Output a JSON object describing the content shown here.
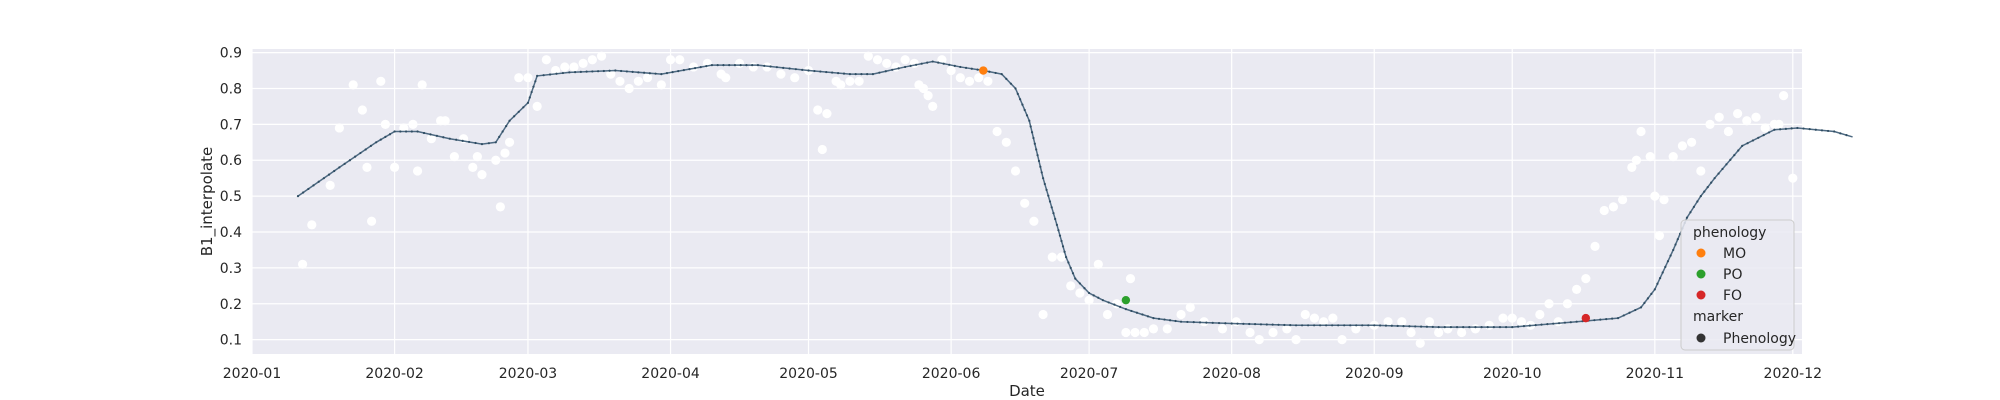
{
  "chart_data": {
    "type": "scatter",
    "xlabel": "Date",
    "ylabel": "B1_interpolate",
    "xlim": [
      "2020-01-01",
      "2020-12-03"
    ],
    "ylim": [
      0.06,
      0.91
    ],
    "grid": true,
    "legend_placement": "bottom-right",
    "x_ticks": [
      "2020-01",
      "2020-02",
      "2020-03",
      "2020-04",
      "2020-05",
      "2020-06",
      "2020-07",
      "2020-08",
      "2020-09",
      "2020-10",
      "2020-11",
      "2020-12"
    ],
    "y_ticks": [
      0.1,
      0.2,
      0.3,
      0.4,
      0.5,
      0.6,
      0.7,
      0.8,
      0.9
    ],
    "series": [
      {
        "kind": "scatter",
        "color": "#ffffff",
        "points": [
          [
            "2020-01-12",
            0.31
          ],
          [
            "2020-01-14",
            0.42
          ],
          [
            "2020-01-18",
            0.53
          ],
          [
            "2020-01-20",
            0.69
          ],
          [
            "2020-01-23",
            0.81
          ],
          [
            "2020-01-25",
            0.74
          ],
          [
            "2020-01-26",
            0.58
          ],
          [
            "2020-01-27",
            0.43
          ],
          [
            "2020-01-29",
            0.82
          ],
          [
            "2020-01-30",
            0.7
          ],
          [
            "2020-02-01",
            0.58
          ],
          [
            "2020-02-03",
            0.69
          ],
          [
            "2020-02-05",
            0.7
          ],
          [
            "2020-02-06",
            0.57
          ],
          [
            "2020-02-07",
            0.81
          ],
          [
            "2020-02-09",
            0.66
          ],
          [
            "2020-02-11",
            0.71
          ],
          [
            "2020-02-12",
            0.71
          ],
          [
            "2020-02-14",
            0.61
          ],
          [
            "2020-02-16",
            0.66
          ],
          [
            "2020-02-18",
            0.58
          ],
          [
            "2020-02-19",
            0.61
          ],
          [
            "2020-02-20",
            0.56
          ],
          [
            "2020-02-23",
            0.6
          ],
          [
            "2020-02-24",
            0.47
          ],
          [
            "2020-02-25",
            0.62
          ],
          [
            "2020-02-26",
            0.65
          ],
          [
            "2020-02-28",
            0.83
          ],
          [
            "2020-03-01",
            0.83
          ],
          [
            "2020-03-03",
            0.75
          ],
          [
            "2020-03-05",
            0.88
          ],
          [
            "2020-03-07",
            0.85
          ],
          [
            "2020-03-09",
            0.86
          ],
          [
            "2020-03-11",
            0.86
          ],
          [
            "2020-03-13",
            0.87
          ],
          [
            "2020-03-15",
            0.88
          ],
          [
            "2020-03-17",
            0.89
          ],
          [
            "2020-03-19",
            0.84
          ],
          [
            "2020-03-21",
            0.82
          ],
          [
            "2020-03-23",
            0.8
          ],
          [
            "2020-03-25",
            0.82
          ],
          [
            "2020-03-27",
            0.83
          ],
          [
            "2020-03-30",
            0.81
          ],
          [
            "2020-04-01",
            0.88
          ],
          [
            "2020-04-03",
            0.88
          ],
          [
            "2020-04-06",
            0.86
          ],
          [
            "2020-04-09",
            0.87
          ],
          [
            "2020-04-12",
            0.84
          ],
          [
            "2020-04-13",
            0.83
          ],
          [
            "2020-04-16",
            0.87
          ],
          [
            "2020-04-19",
            0.86
          ],
          [
            "2020-04-22",
            0.86
          ],
          [
            "2020-04-25",
            0.84
          ],
          [
            "2020-04-28",
            0.83
          ],
          [
            "2020-05-01",
            0.85
          ],
          [
            "2020-05-03",
            0.74
          ],
          [
            "2020-05-04",
            0.63
          ],
          [
            "2020-05-05",
            0.73
          ],
          [
            "2020-05-07",
            0.82
          ],
          [
            "2020-05-08",
            0.81
          ],
          [
            "2020-05-10",
            0.82
          ],
          [
            "2020-05-12",
            0.82
          ],
          [
            "2020-05-14",
            0.89
          ],
          [
            "2020-05-16",
            0.88
          ],
          [
            "2020-05-18",
            0.87
          ],
          [
            "2020-05-20",
            0.86
          ],
          [
            "2020-05-22",
            0.88
          ],
          [
            "2020-05-24",
            0.87
          ],
          [
            "2020-05-25",
            0.81
          ],
          [
            "2020-05-26",
            0.8
          ],
          [
            "2020-05-27",
            0.78
          ],
          [
            "2020-05-28",
            0.75
          ],
          [
            "2020-05-30",
            0.88
          ],
          [
            "2020-06-01",
            0.85
          ],
          [
            "2020-06-03",
            0.83
          ],
          [
            "2020-06-05",
            0.82
          ],
          [
            "2020-06-07",
            0.83
          ],
          [
            "2020-06-09",
            0.82
          ],
          [
            "2020-06-11",
            0.68
          ],
          [
            "2020-06-13",
            0.65
          ],
          [
            "2020-06-15",
            0.57
          ],
          [
            "2020-06-17",
            0.48
          ],
          [
            "2020-06-19",
            0.43
          ],
          [
            "2020-06-21",
            0.17
          ],
          [
            "2020-06-23",
            0.33
          ],
          [
            "2020-06-25",
            0.33
          ],
          [
            "2020-06-27",
            0.25
          ],
          [
            "2020-06-29",
            0.23
          ],
          [
            "2020-07-01",
            0.21
          ],
          [
            "2020-07-03",
            0.31
          ],
          [
            "2020-07-05",
            0.17
          ],
          [
            "2020-07-07",
            0.2
          ],
          [
            "2020-07-09",
            0.12
          ],
          [
            "2020-07-10",
            0.27
          ],
          [
            "2020-07-11",
            0.12
          ],
          [
            "2020-07-13",
            0.12
          ],
          [
            "2020-07-15",
            0.13
          ],
          [
            "2020-07-18",
            0.13
          ],
          [
            "2020-07-21",
            0.17
          ],
          [
            "2020-07-23",
            0.19
          ],
          [
            "2020-07-26",
            0.15
          ],
          [
            "2020-07-30",
            0.13
          ],
          [
            "2020-08-02",
            0.15
          ],
          [
            "2020-08-05",
            0.12
          ],
          [
            "2020-08-07",
            0.1
          ],
          [
            "2020-08-10",
            0.12
          ],
          [
            "2020-08-13",
            0.13
          ],
          [
            "2020-08-15",
            0.1
          ],
          [
            "2020-08-17",
            0.17
          ],
          [
            "2020-08-19",
            0.16
          ],
          [
            "2020-08-21",
            0.15
          ],
          [
            "2020-08-23",
            0.16
          ],
          [
            "2020-08-25",
            0.1
          ],
          [
            "2020-08-28",
            0.13
          ],
          [
            "2020-09-01",
            0.14
          ],
          [
            "2020-09-04",
            0.15
          ],
          [
            "2020-09-07",
            0.15
          ],
          [
            "2020-09-09",
            0.12
          ],
          [
            "2020-09-11",
            0.09
          ],
          [
            "2020-09-13",
            0.15
          ],
          [
            "2020-09-15",
            0.12
          ],
          [
            "2020-09-17",
            0.13
          ],
          [
            "2020-09-20",
            0.12
          ],
          [
            "2020-09-23",
            0.13
          ],
          [
            "2020-09-26",
            0.14
          ],
          [
            "2020-09-29",
            0.16
          ],
          [
            "2020-10-01",
            0.16
          ],
          [
            "2020-10-03",
            0.15
          ],
          [
            "2020-10-05",
            0.14
          ],
          [
            "2020-10-07",
            0.17
          ],
          [
            "2020-10-09",
            0.2
          ],
          [
            "2020-10-11",
            0.15
          ],
          [
            "2020-10-13",
            0.2
          ],
          [
            "2020-10-15",
            0.24
          ],
          [
            "2020-10-17",
            0.27
          ],
          [
            "2020-10-19",
            0.36
          ],
          [
            "2020-10-21",
            0.46
          ],
          [
            "2020-10-23",
            0.47
          ],
          [
            "2020-10-25",
            0.49
          ],
          [
            "2020-10-27",
            0.58
          ],
          [
            "2020-10-28",
            0.6
          ],
          [
            "2020-10-29",
            0.68
          ],
          [
            "2020-10-31",
            0.61
          ],
          [
            "2020-11-01",
            0.5
          ],
          [
            "2020-11-02",
            0.39
          ],
          [
            "2020-11-03",
            0.49
          ],
          [
            "2020-11-05",
            0.61
          ],
          [
            "2020-11-07",
            0.64
          ],
          [
            "2020-11-09",
            0.65
          ],
          [
            "2020-11-11",
            0.57
          ],
          [
            "2020-11-13",
            0.7
          ],
          [
            "2020-11-15",
            0.72
          ],
          [
            "2020-11-17",
            0.68
          ],
          [
            "2020-11-19",
            0.73
          ],
          [
            "2020-11-21",
            0.71
          ],
          [
            "2020-11-23",
            0.72
          ],
          [
            "2020-11-25",
            0.69
          ],
          [
            "2020-11-27",
            0.7
          ],
          [
            "2020-11-28",
            0.7
          ],
          [
            "2020-11-29",
            0.78
          ],
          [
            "2020-12-01",
            0.55
          ]
        ]
      },
      {
        "kind": "line",
        "color": "#4e6a82",
        "points": [
          [
            "2020-01-11",
            0.5
          ],
          [
            "2020-01-20",
            0.58
          ],
          [
            "2020-01-28",
            0.65
          ],
          [
            "2020-02-01",
            0.68
          ],
          [
            "2020-02-06",
            0.68
          ],
          [
            "2020-02-13",
            0.66
          ],
          [
            "2020-02-20",
            0.645
          ],
          [
            "2020-02-23",
            0.65
          ],
          [
            "2020-02-26",
            0.71
          ],
          [
            "2020-03-01",
            0.76
          ],
          [
            "2020-03-03",
            0.835
          ],
          [
            "2020-03-10",
            0.845
          ],
          [
            "2020-03-20",
            0.85
          ],
          [
            "2020-03-30",
            0.84
          ],
          [
            "2020-04-10",
            0.865
          ],
          [
            "2020-04-20",
            0.865
          ],
          [
            "2020-05-01",
            0.85
          ],
          [
            "2020-05-10",
            0.84
          ],
          [
            "2020-05-15",
            0.84
          ],
          [
            "2020-05-22",
            0.86
          ],
          [
            "2020-05-28",
            0.875
          ],
          [
            "2020-06-03",
            0.86
          ],
          [
            "2020-06-08",
            0.85
          ],
          [
            "2020-06-12",
            0.84
          ],
          [
            "2020-06-15",
            0.8
          ],
          [
            "2020-06-18",
            0.71
          ],
          [
            "2020-06-21",
            0.55
          ],
          [
            "2020-06-24",
            0.42
          ],
          [
            "2020-06-26",
            0.33
          ],
          [
            "2020-06-28",
            0.27
          ],
          [
            "2020-07-01",
            0.23
          ],
          [
            "2020-07-04",
            0.21
          ],
          [
            "2020-07-09",
            0.185
          ],
          [
            "2020-07-15",
            0.16
          ],
          [
            "2020-07-21",
            0.15
          ],
          [
            "2020-08-01",
            0.145
          ],
          [
            "2020-08-15",
            0.14
          ],
          [
            "2020-09-01",
            0.14
          ],
          [
            "2020-09-15",
            0.135
          ],
          [
            "2020-10-01",
            0.135
          ],
          [
            "2020-10-15",
            0.15
          ],
          [
            "2020-10-24",
            0.16
          ],
          [
            "2020-10-29",
            0.19
          ],
          [
            "2020-11-01",
            0.24
          ],
          [
            "2020-11-05",
            0.35
          ],
          [
            "2020-11-08",
            0.44
          ],
          [
            "2020-11-11",
            0.5
          ],
          [
            "2020-11-14",
            0.55
          ],
          [
            "2020-11-20",
            0.64
          ],
          [
            "2020-11-27",
            0.685
          ],
          [
            "2020-12-02",
            0.69
          ],
          [
            "2020-12-10",
            0.68
          ],
          [
            "2020-12-14",
            0.665
          ]
        ]
      },
      {
        "kind": "phenology",
        "points": [
          {
            "name": "MO",
            "x": "2020-06-08",
            "y": 0.85,
            "color": "#ff7f0e"
          },
          {
            "name": "PO",
            "x": "2020-07-09",
            "y": 0.21,
            "color": "#2ca02c"
          },
          {
            "name": "FO",
            "x": "2020-10-17",
            "y": 0.16,
            "color": "#d62728"
          }
        ]
      }
    ],
    "legend": {
      "title_hue": "phenology",
      "hue_items": [
        {
          "label": "MO",
          "color": "#ff7f0e"
        },
        {
          "label": "PO",
          "color": "#2ca02c"
        },
        {
          "label": "FO",
          "color": "#d62728"
        }
      ],
      "title_style": "marker",
      "style_items": [
        {
          "label": "Phenology",
          "color": "#333333"
        }
      ]
    }
  },
  "colors": {
    "plot_bg": "#eaeaf2",
    "grid": "#ffffff",
    "text": "#262626"
  }
}
